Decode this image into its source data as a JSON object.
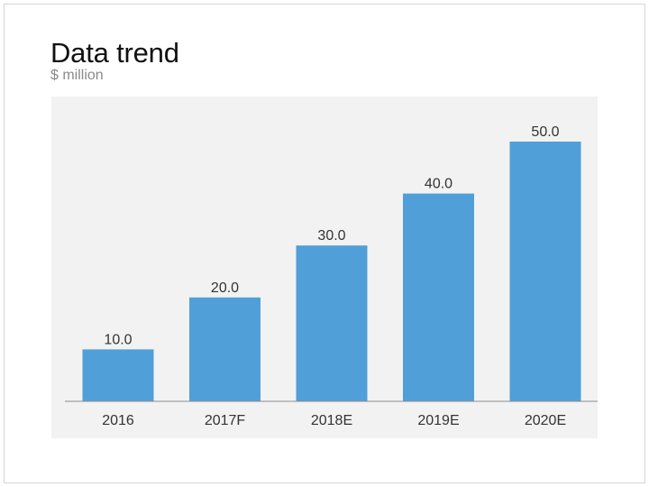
{
  "header": {
    "title": "Data trend",
    "subtitle": "$ million"
  },
  "colors": {
    "bar": "#519FD8",
    "plot_background": "#F2F2F2",
    "axis": "#8C8C8C",
    "text": "#333333"
  },
  "chart_data": {
    "type": "bar",
    "title": "Data trend",
    "subtitle": "$ million",
    "categories": [
      "2016",
      "2017F",
      "2018E",
      "2019E",
      "2020E"
    ],
    "values": [
      10.0,
      20.0,
      30.0,
      40.0,
      50.0
    ],
    "data_labels": [
      "10.0",
      "20.0",
      "30.0",
      "40.0",
      "50.0"
    ],
    "xlabel": "",
    "ylabel": "",
    "ylim": [
      0,
      50
    ],
    "grid": false,
    "legend": "none"
  }
}
